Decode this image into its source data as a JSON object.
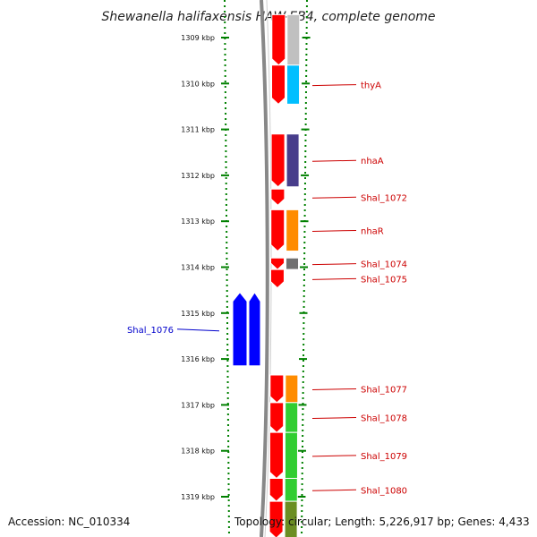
{
  "title": "Shewanella halifaxensis HAW-EB4, complete genome",
  "footer": {
    "accession": "Accession: NC_010334",
    "topology": "Topology: circular; Length: 5,226,917 bp; Genes: 4,433"
  },
  "colors": {
    "forward_gene": "#ff0000",
    "reverse_gene": "#0000ff",
    "tick": "#008000",
    "backbone": "#888888",
    "label_forward": "#cc0000",
    "label_reverse": "#0000cc"
  },
  "axis": {
    "unit": "kbp",
    "ticks": [
      1309,
      1310,
      1311,
      1312,
      1313,
      1314,
      1315,
      1316,
      1317,
      1318,
      1319
    ],
    "tick_labels": [
      "1309 kbp",
      "1310 kbp",
      "1311 kbp",
      "1312 kbp",
      "1313 kbp",
      "1314 kbp",
      "1315 kbp",
      "1316 kbp",
      "1317 kbp",
      "1318 kbp",
      "1319 kbp"
    ]
  },
  "genes": [
    {
      "strand": "forward",
      "start": 1308.5,
      "end": 1309.6,
      "label": "",
      "cog_color": "#c0c0c0"
    },
    {
      "strand": "forward",
      "start": 1309.6,
      "end": 1310.45,
      "label": "thyA",
      "cog_color": "#00bfff"
    },
    {
      "strand": "forward",
      "start": 1311.1,
      "end": 1312.25,
      "label": "nhaA",
      "cog_color": "#483d8b"
    },
    {
      "strand": "forward",
      "start": 1312.3,
      "end": 1312.65,
      "label": "Shal_1072",
      "cog_color": ""
    },
    {
      "strand": "forward",
      "start": 1312.75,
      "end": 1313.65,
      "label": "nhaR",
      "cog_color": "#ff8c00"
    },
    {
      "strand": "forward",
      "start": 1313.8,
      "end": 1314.05,
      "label": "Shal_1074",
      "cog_color": "#707070"
    },
    {
      "strand": "forward",
      "start": 1314.05,
      "end": 1314.45,
      "label": "Shal_1075",
      "cog_color": ""
    },
    {
      "strand": "reverse",
      "start": 1314.55,
      "end": 1316.15,
      "label": "Shal_1076",
      "cog_color": ""
    },
    {
      "strand": "forward",
      "start": 1316.35,
      "end": 1316.95,
      "label": "Shal_1077",
      "cog_color": "#ff8c00"
    },
    {
      "strand": "forward",
      "start": 1316.95,
      "end": 1317.6,
      "label": "Shal_1078",
      "cog_color": "#32cd32"
    },
    {
      "strand": "forward",
      "start": 1317.6,
      "end": 1318.6,
      "label": "Shal_1079",
      "cog_color": "#32cd32"
    },
    {
      "strand": "forward",
      "start": 1318.6,
      "end": 1319.1,
      "label": "Shal_1080",
      "cog_color": "#32cd32"
    },
    {
      "strand": "forward",
      "start": 1319.1,
      "end": 1319.9,
      "label": "",
      "cog_color": "#6b8e23"
    }
  ]
}
